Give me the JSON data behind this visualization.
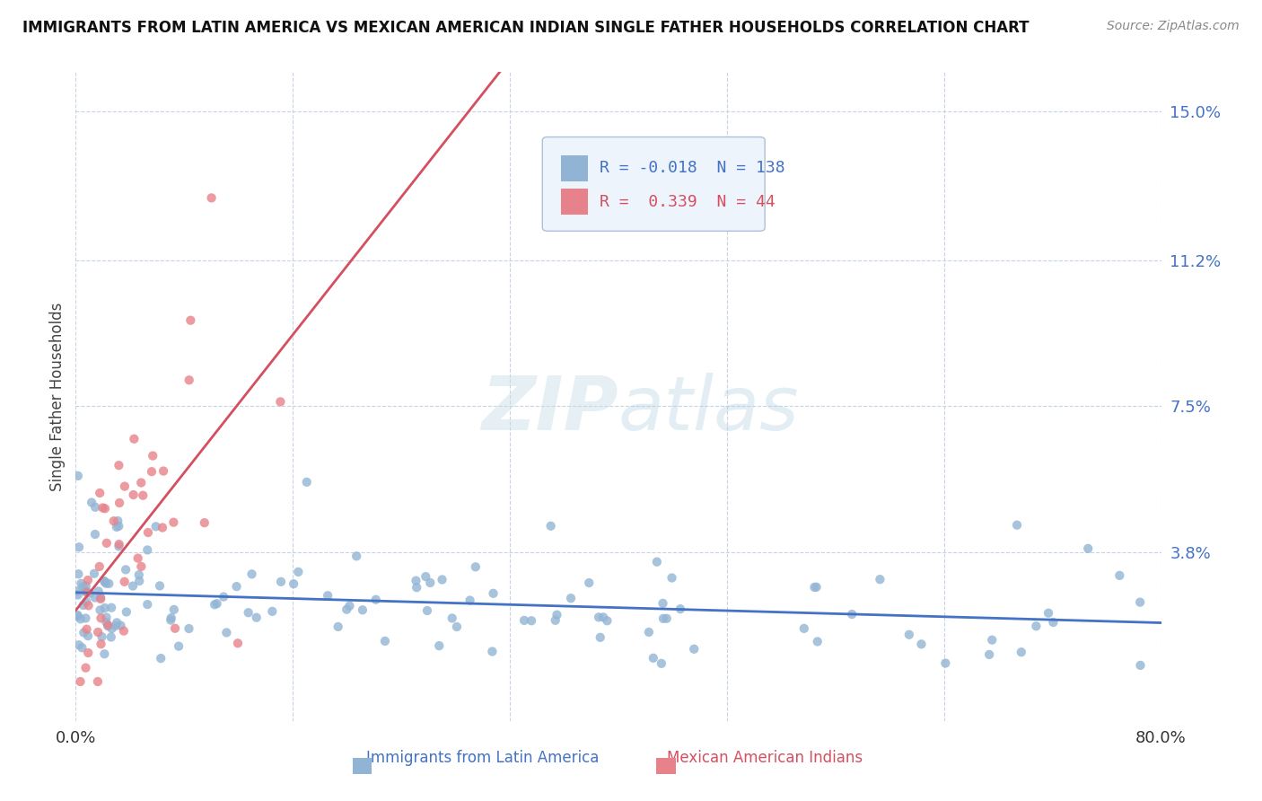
{
  "title": "IMMIGRANTS FROM LATIN AMERICA VS MEXICAN AMERICAN INDIAN SINGLE FATHER HOUSEHOLDS CORRELATION CHART",
  "source": "Source: ZipAtlas.com",
  "xlabel_blue": "Immigrants from Latin America",
  "xlabel_pink": "Mexican American Indians",
  "ylabel": "Single Father Households",
  "blue_R": -0.018,
  "blue_N": 138,
  "pink_R": 0.339,
  "pink_N": 44,
  "xmin": 0.0,
  "xmax": 0.8,
  "ymin": -0.005,
  "ymax": 0.16,
  "yticks": [
    0.038,
    0.075,
    0.112,
    0.15
  ],
  "ytick_labels": [
    "3.8%",
    "7.5%",
    "11.2%",
    "15.0%"
  ],
  "xticks": [
    0.0,
    0.16,
    0.32,
    0.48,
    0.64,
    0.8
  ],
  "xtick_labels": [
    "0.0%",
    "",
    "",
    "",
    "",
    "80.0%"
  ],
  "blue_color": "#92b4d4",
  "pink_color": "#e8828a",
  "blue_line_color": "#4472c4",
  "pink_line_color": "#d45060",
  "dashed_line_color": "#c8a0b0",
  "watermark_color": "#dde8f0",
  "background_color": "#ffffff",
  "grid_color": "#c8d4e4",
  "legend_bg": "#eef4fc",
  "legend_border": "#b0c0d8"
}
